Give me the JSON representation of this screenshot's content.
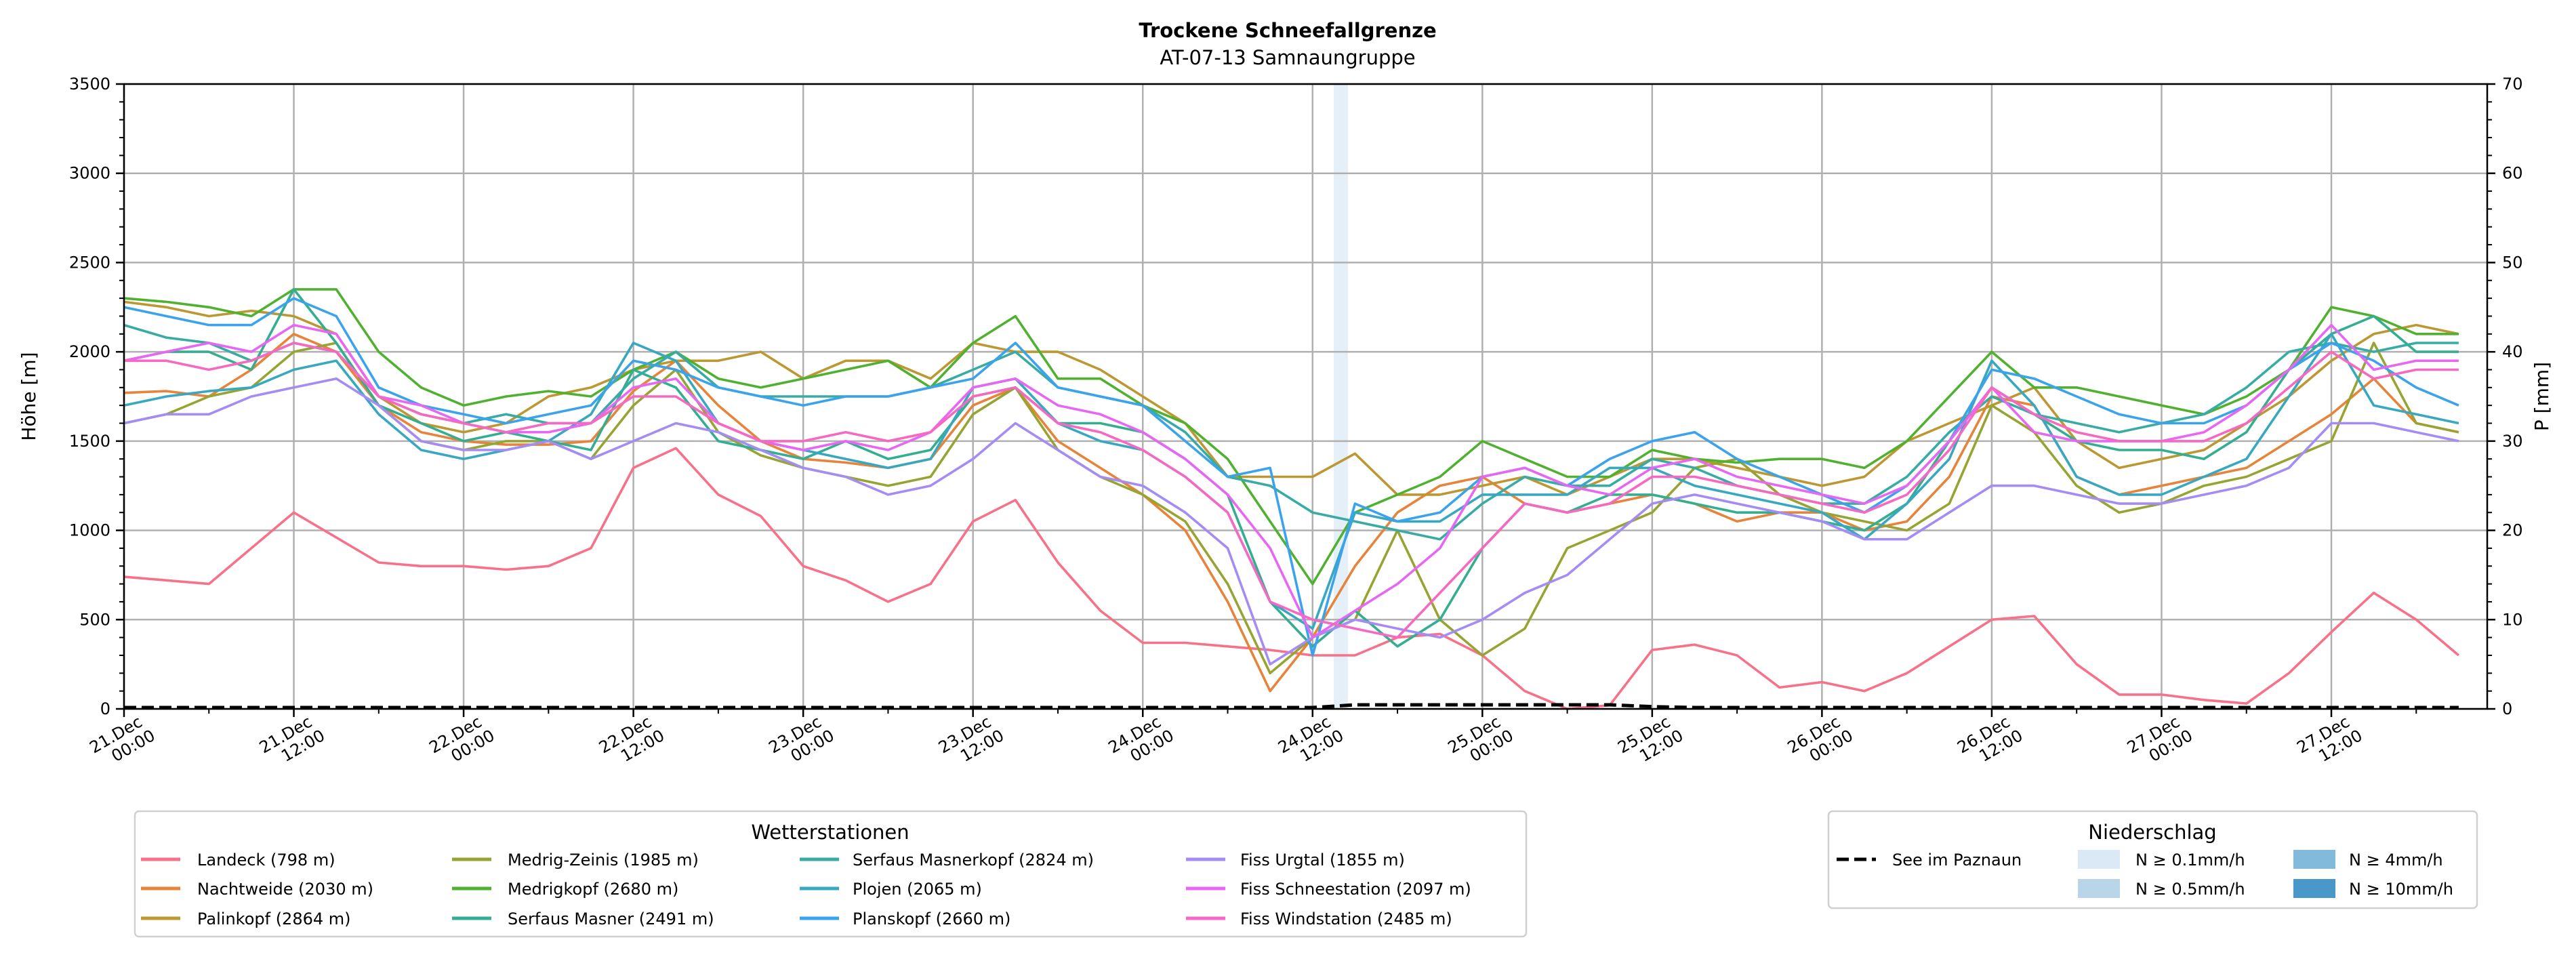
{
  "chart_data": {
    "type": "line",
    "title": "Trockene Schneefallgrenze",
    "subtitle": "AT-07-13 Samnaungruppe",
    "ylabel": "Höhe [m]",
    "ylabel_right": "P [mm]",
    "ylim": [
      0,
      3500
    ],
    "ylim_right": [
      0,
      70
    ],
    "yticks": [
      0,
      500,
      1000,
      1500,
      2000,
      2500,
      3000,
      3500
    ],
    "yticks_right": [
      0,
      10,
      20,
      30,
      40,
      50,
      60,
      70
    ],
    "x_start": "21.Dec 00:00",
    "x_range_hours": [
      0,
      167
    ],
    "x_step_hours": 3,
    "xticks": [
      [
        "21.Dec",
        "00:00"
      ],
      [
        "21.Dec",
        "12:00"
      ],
      [
        "22.Dec",
        "00:00"
      ],
      [
        "22.Dec",
        "12:00"
      ],
      [
        "23.Dec",
        "00:00"
      ],
      [
        "23.Dec",
        "12:00"
      ],
      [
        "24.Dec",
        "00:00"
      ],
      [
        "24.Dec",
        "12:00"
      ],
      [
        "25.Dec",
        "00:00"
      ],
      [
        "25.Dec",
        "12:00"
      ],
      [
        "26.Dec",
        "00:00"
      ],
      [
        "26.Dec",
        "12:00"
      ],
      [
        "27.Dec",
        "00:00"
      ],
      [
        "27.Dec",
        "12:00"
      ]
    ],
    "grid": true,
    "legend_title": "Wetterstationen",
    "legend_placement": "bottom-left",
    "series": [
      {
        "name": "Landeck (798 m)",
        "color": "#f77189",
        "values": [
          740,
          720,
          700,
          900,
          1100,
          960,
          820,
          800,
          800,
          780,
          800,
          900,
          1350,
          1460,
          1200,
          1080,
          800,
          720,
          600,
          700,
          1050,
          1170,
          820,
          550,
          370,
          370,
          350,
          330,
          300,
          300,
          400,
          420,
          300,
          100,
          0,
          20,
          330,
          360,
          300,
          120,
          150,
          100,
          200,
          350,
          500,
          520,
          250,
          80,
          80,
          50,
          30,
          200,
          430,
          650,
          500,
          300
        ]
      },
      {
        "name": "Nachtweide (2030 m)",
        "color": "#e5843a",
        "values": [
          1770,
          1780,
          1750,
          1900,
          2100,
          2000,
          1700,
          1550,
          1500,
          1480,
          1480,
          1500,
          1780,
          1950,
          1700,
          1500,
          1400,
          1380,
          1350,
          1400,
          1700,
          1800,
          1500,
          1350,
          1200,
          1000,
          600,
          100,
          400,
          800,
          1100,
          1250,
          1300,
          1150,
          1100,
          1150,
          1200,
          1150,
          1050,
          1100,
          1100,
          1000,
          1050,
          1300,
          1750,
          1700,
          1300,
          1200,
          1250,
          1300,
          1350,
          1500,
          1650,
          1850,
          1600,
          1550
        ]
      },
      {
        "name": "Palinkopf (2864 m)",
        "color": "#bb9832",
        "values": [
          2280,
          2250,
          2200,
          2230,
          2200,
          2100,
          1750,
          1600,
          1550,
          1600,
          1750,
          1800,
          1900,
          1950,
          1950,
          2000,
          1850,
          1950,
          1950,
          1850,
          2050,
          2000,
          2000,
          1900,
          1750,
          1600,
          1300,
          1300,
          1300,
          1430,
          1200,
          1200,
          1250,
          1300,
          1200,
          1300,
          1400,
          1400,
          1350,
          1300,
          1250,
          1300,
          1500,
          1600,
          1700,
          1800,
          1500,
          1350,
          1400,
          1450,
          1600,
          1750,
          1950,
          2100,
          2150,
          2100
        ]
      },
      {
        "name": "Medrig-Zeinis (1985 m)",
        "color": "#97a431",
        "values": [
          1600,
          1650,
          1750,
          1800,
          2000,
          2050,
          1700,
          1500,
          1450,
          1500,
          1500,
          1400,
          1700,
          1900,
          1550,
          1420,
          1350,
          1300,
          1250,
          1300,
          1650,
          1800,
          1450,
          1300,
          1200,
          1050,
          700,
          200,
          400,
          500,
          1000,
          500,
          300,
          450,
          900,
          1000,
          1100,
          1350,
          1400,
          1200,
          1100,
          1050,
          1000,
          1150,
          1700,
          1550,
          1250,
          1100,
          1150,
          1250,
          1300,
          1400,
          1500,
          2050,
          1600,
          1550
        ]
      },
      {
        "name": "Medrigkopf (2680 m)",
        "color": "#50b131",
        "values": [
          2300,
          2280,
          2250,
          2200,
          2350,
          2350,
          2000,
          1800,
          1700,
          1750,
          1780,
          1750,
          1900,
          2000,
          1850,
          1800,
          1850,
          1900,
          1950,
          1800,
          2050,
          2200,
          1850,
          1850,
          1700,
          1600,
          1400,
          1050,
          700,
          1100,
          1200,
          1300,
          1500,
          1400,
          1300,
          1300,
          1450,
          1400,
          1380,
          1400,
          1400,
          1350,
          1500,
          1750,
          2000,
          1800,
          1800,
          1750,
          1700,
          1650,
          1750,
          1900,
          2250,
          2200,
          2100,
          2100
        ]
      },
      {
        "name": "Serfaus Masner (2491 m)",
        "color": "#34ae91",
        "values": [
          1950,
          2000,
          2000,
          1900,
          2350,
          2050,
          1700,
          1600,
          1500,
          1550,
          1500,
          1450,
          1900,
          1800,
          1500,
          1450,
          1400,
          1500,
          1400,
          1450,
          1750,
          1800,
          1600,
          1600,
          1550,
          1400,
          1200,
          600,
          350,
          550,
          350,
          500,
          900,
          1150,
          1100,
          1200,
          1200,
          1150,
          1100,
          1100,
          1050,
          1000,
          1150,
          1500,
          1800,
          1650,
          1500,
          1450,
          1450,
          1400,
          1550,
          1900,
          2100,
          2200,
          2000,
          2000
        ]
      },
      {
        "name": "Serfaus Masnerkopf (2824 m)",
        "color": "#37aba4",
        "values": [
          2150,
          2080,
          2050,
          1950,
          2050,
          2000,
          1750,
          1650,
          1600,
          1650,
          1600,
          1600,
          1850,
          2000,
          1800,
          1750,
          1750,
          1750,
          1750,
          1800,
          1900,
          2000,
          1800,
          1750,
          1700,
          1550,
          1300,
          1250,
          1100,
          1050,
          1000,
          950,
          1150,
          1300,
          1250,
          1250,
          1400,
          1350,
          1250,
          1200,
          1150,
          1150,
          1300,
          1550,
          1750,
          1650,
          1600,
          1550,
          1600,
          1650,
          1800,
          2000,
          2050,
          2000,
          2050,
          2050
        ]
      },
      {
        "name": "Plojen (2065 m)",
        "color": "#38a8c0",
        "values": [
          1700,
          1750,
          1780,
          1800,
          1900,
          1950,
          1650,
          1450,
          1400,
          1450,
          1500,
          1650,
          2050,
          1950,
          1600,
          1500,
          1450,
          1400,
          1350,
          1400,
          1800,
          1850,
          1600,
          1500,
          1450,
          1300,
          1100,
          600,
          450,
          1100,
          1050,
          1050,
          1200,
          1200,
          1200,
          1350,
          1350,
          1250,
          1200,
          1150,
          1100,
          950,
          1150,
          1400,
          1950,
          1700,
          1300,
          1200,
          1200,
          1300,
          1400,
          1750,
          2100,
          1700,
          1650,
          1600
        ]
      },
      {
        "name": "Planskopf (2660 m)",
        "color": "#3ba3ec",
        "values": [
          2250,
          2200,
          2150,
          2150,
          2300,
          2200,
          1800,
          1700,
          1650,
          1600,
          1650,
          1700,
          1950,
          1900,
          1800,
          1750,
          1700,
          1750,
          1750,
          1800,
          1850,
          2050,
          1800,
          1750,
          1700,
          1500,
          1300,
          1350,
          300,
          1150,
          1050,
          1100,
          1300,
          1350,
          1250,
          1400,
          1500,
          1550,
          1400,
          1300,
          1200,
          1100,
          1250,
          1500,
          1900,
          1850,
          1750,
          1650,
          1600,
          1600,
          1700,
          1900,
          2050,
          1950,
          1800,
          1700
        ]
      },
      {
        "name": "Fiss Urgtal  (1855 m)",
        "color": "#a48cf4",
        "values": [
          1600,
          1650,
          1650,
          1750,
          1800,
          1850,
          1700,
          1500,
          1450,
          1450,
          1500,
          1400,
          1500,
          1600,
          1550,
          1450,
          1350,
          1300,
          1200,
          1250,
          1400,
          1600,
          1450,
          1300,
          1250,
          1100,
          900,
          250,
          400,
          500,
          450,
          400,
          500,
          650,
          750,
          950,
          1150,
          1200,
          1150,
          1100,
          1050,
          950,
          950,
          1100,
          1250,
          1250,
          1200,
          1150,
          1150,
          1200,
          1250,
          1350,
          1600,
          1600,
          1550,
          1500
        ]
      },
      {
        "name": "Fiss Schneestation (2097 m)",
        "color": "#e866f4",
        "values": [
          1950,
          2000,
          2050,
          2000,
          2150,
          2100,
          1750,
          1700,
          1600,
          1550,
          1550,
          1600,
          1800,
          1850,
          1600,
          1500,
          1450,
          1500,
          1450,
          1550,
          1800,
          1850,
          1700,
          1650,
          1550,
          1400,
          1200,
          900,
          400,
          550,
          700,
          900,
          1300,
          1350,
          1250,
          1200,
          1350,
          1400,
          1300,
          1250,
          1200,
          1150,
          1250,
          1500,
          1800,
          1550,
          1500,
          1500,
          1500,
          1550,
          1700,
          1900,
          2150,
          1900,
          1950,
          1950
        ]
      },
      {
        "name": "Fiss Windstation (2485 m)",
        "color": "#f668c2",
        "values": [
          1950,
          1950,
          1900,
          1950,
          2050,
          2000,
          1750,
          1650,
          1600,
          1550,
          1600,
          1600,
          1750,
          1750,
          1600,
          1500,
          1500,
          1550,
          1500,
          1550,
          1750,
          1800,
          1600,
          1550,
          1450,
          1300,
          1100,
          600,
          500,
          450,
          400,
          650,
          900,
          1150,
          1100,
          1150,
          1300,
          1300,
          1250,
          1200,
          1150,
          1100,
          1200,
          1450,
          1800,
          1650,
          1550,
          1500,
          1500,
          1500,
          1600,
          1800,
          2000,
          1850,
          1900,
          1900
        ]
      }
    ],
    "precipitation_legend_title": "Niederschlag",
    "lake": {
      "name": "See im Paznaun",
      "color": "#000000",
      "values_mm": [
        0,
        0,
        0,
        0,
        0,
        0,
        0,
        0,
        0,
        0,
        0,
        0,
        0,
        0,
        0,
        0,
        0,
        0,
        0,
        0,
        0,
        0,
        0,
        0,
        0,
        0,
        0,
        0,
        0,
        0.3,
        0.3,
        0.3,
        0.3,
        0.3,
        0.3,
        0.3,
        0.1,
        0,
        0,
        0,
        0,
        0,
        0,
        0,
        0,
        0,
        0,
        0,
        0,
        0,
        0,
        0,
        0,
        0,
        0,
        0
      ]
    },
    "precip_classes": [
      {
        "label": "N ≥ 0.1mm/h",
        "color": "#dbe9f6"
      },
      {
        "label": "N ≥ 0.5mm/h",
        "color": "#b9d5ea"
      },
      {
        "label": "N ≥ 4mm/h",
        "color": "#82badb"
      },
      {
        "label": "N ≥ 10mm/h",
        "color": "#4a98c9"
      }
    ],
    "precip_events": [
      {
        "start_hour": 85.5,
        "end_hour": 86.5,
        "class_index": 0
      }
    ]
  }
}
